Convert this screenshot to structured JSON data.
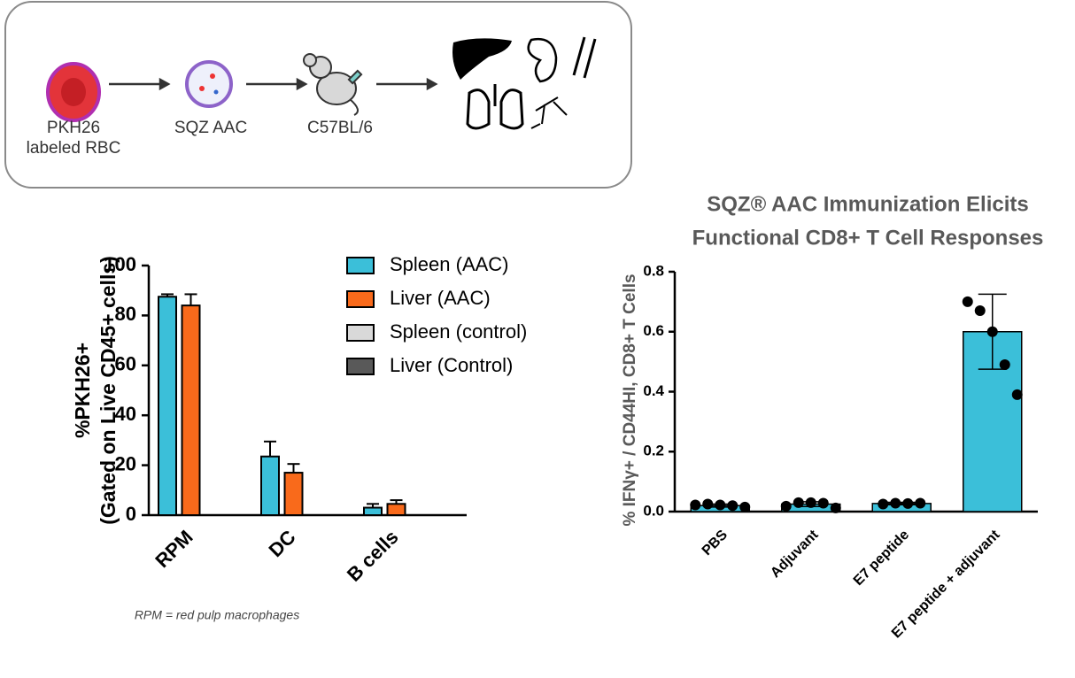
{
  "diagram": {
    "nodes": [
      {
        "label": [
          "PKH26",
          "labeled RBC"
        ]
      },
      {
        "label": [
          "SQZ AAC"
        ]
      },
      {
        "label": [
          "C57BL/6"
        ]
      }
    ]
  },
  "chart_data": [
    {
      "type": "bar",
      "ylabel": [
        "%PKH26+",
        "(Gated on Live CD45+ cells)"
      ],
      "categories": [
        "RPM",
        "DC",
        "B cells"
      ],
      "series": [
        {
          "name": "Spleen (AAC)",
          "color": "#3bbfd9",
          "values": [
            87.5,
            23.5,
            3
          ],
          "errors": [
            1,
            6,
            1.5
          ]
        },
        {
          "name": "Liver (AAC)",
          "color": "#f96a1b",
          "values": [
            84,
            17,
            4.5
          ],
          "errors": [
            4.5,
            3.5,
            1.5
          ]
        },
        {
          "name": "Spleen (control)",
          "color": "#d9d9d9",
          "values": [
            0,
            0,
            0
          ]
        },
        {
          "name": "Liver (Control)",
          "color": "#595959",
          "values": [
            0,
            0,
            0
          ]
        }
      ],
      "ylim": [
        0,
        100
      ],
      "yticks": [
        0,
        20,
        40,
        60,
        80,
        100
      ],
      "legend": "top-right",
      "note": "RPM = red pulp macrophages"
    },
    {
      "type": "bar",
      "title": [
        "SQZ® AAC Immunization Elicits",
        "Functional CD8+  T Cell Responses"
      ],
      "ylabel": "% IFNγ+ / CD44HI, CD8+ T Cells",
      "categories": [
        "PBS",
        "Adjuvant",
        "E7 peptide",
        "E7 peptide + adjuvant"
      ],
      "values": [
        0.02,
        0.025,
        0.027,
        0.6
      ],
      "errors": [
        0.005,
        0.008,
        0.004,
        0.125
      ],
      "points": [
        [
          0.022,
          0.025,
          0.022,
          0.02,
          0.015
        ],
        [
          0.018,
          0.03,
          0.03,
          0.028,
          0.012
        ],
        [
          0.025,
          0.028,
          0.027,
          0.028
        ],
        [
          0.7,
          0.67,
          0.6,
          0.49,
          0.39
        ]
      ],
      "color": "#3bbfd9",
      "ylim": [
        0,
        0.8
      ],
      "yticks": [
        {
          "value": 0,
          "label": "0.0"
        },
        0.2,
        0.4,
        0.6,
        0.8
      ]
    }
  ]
}
